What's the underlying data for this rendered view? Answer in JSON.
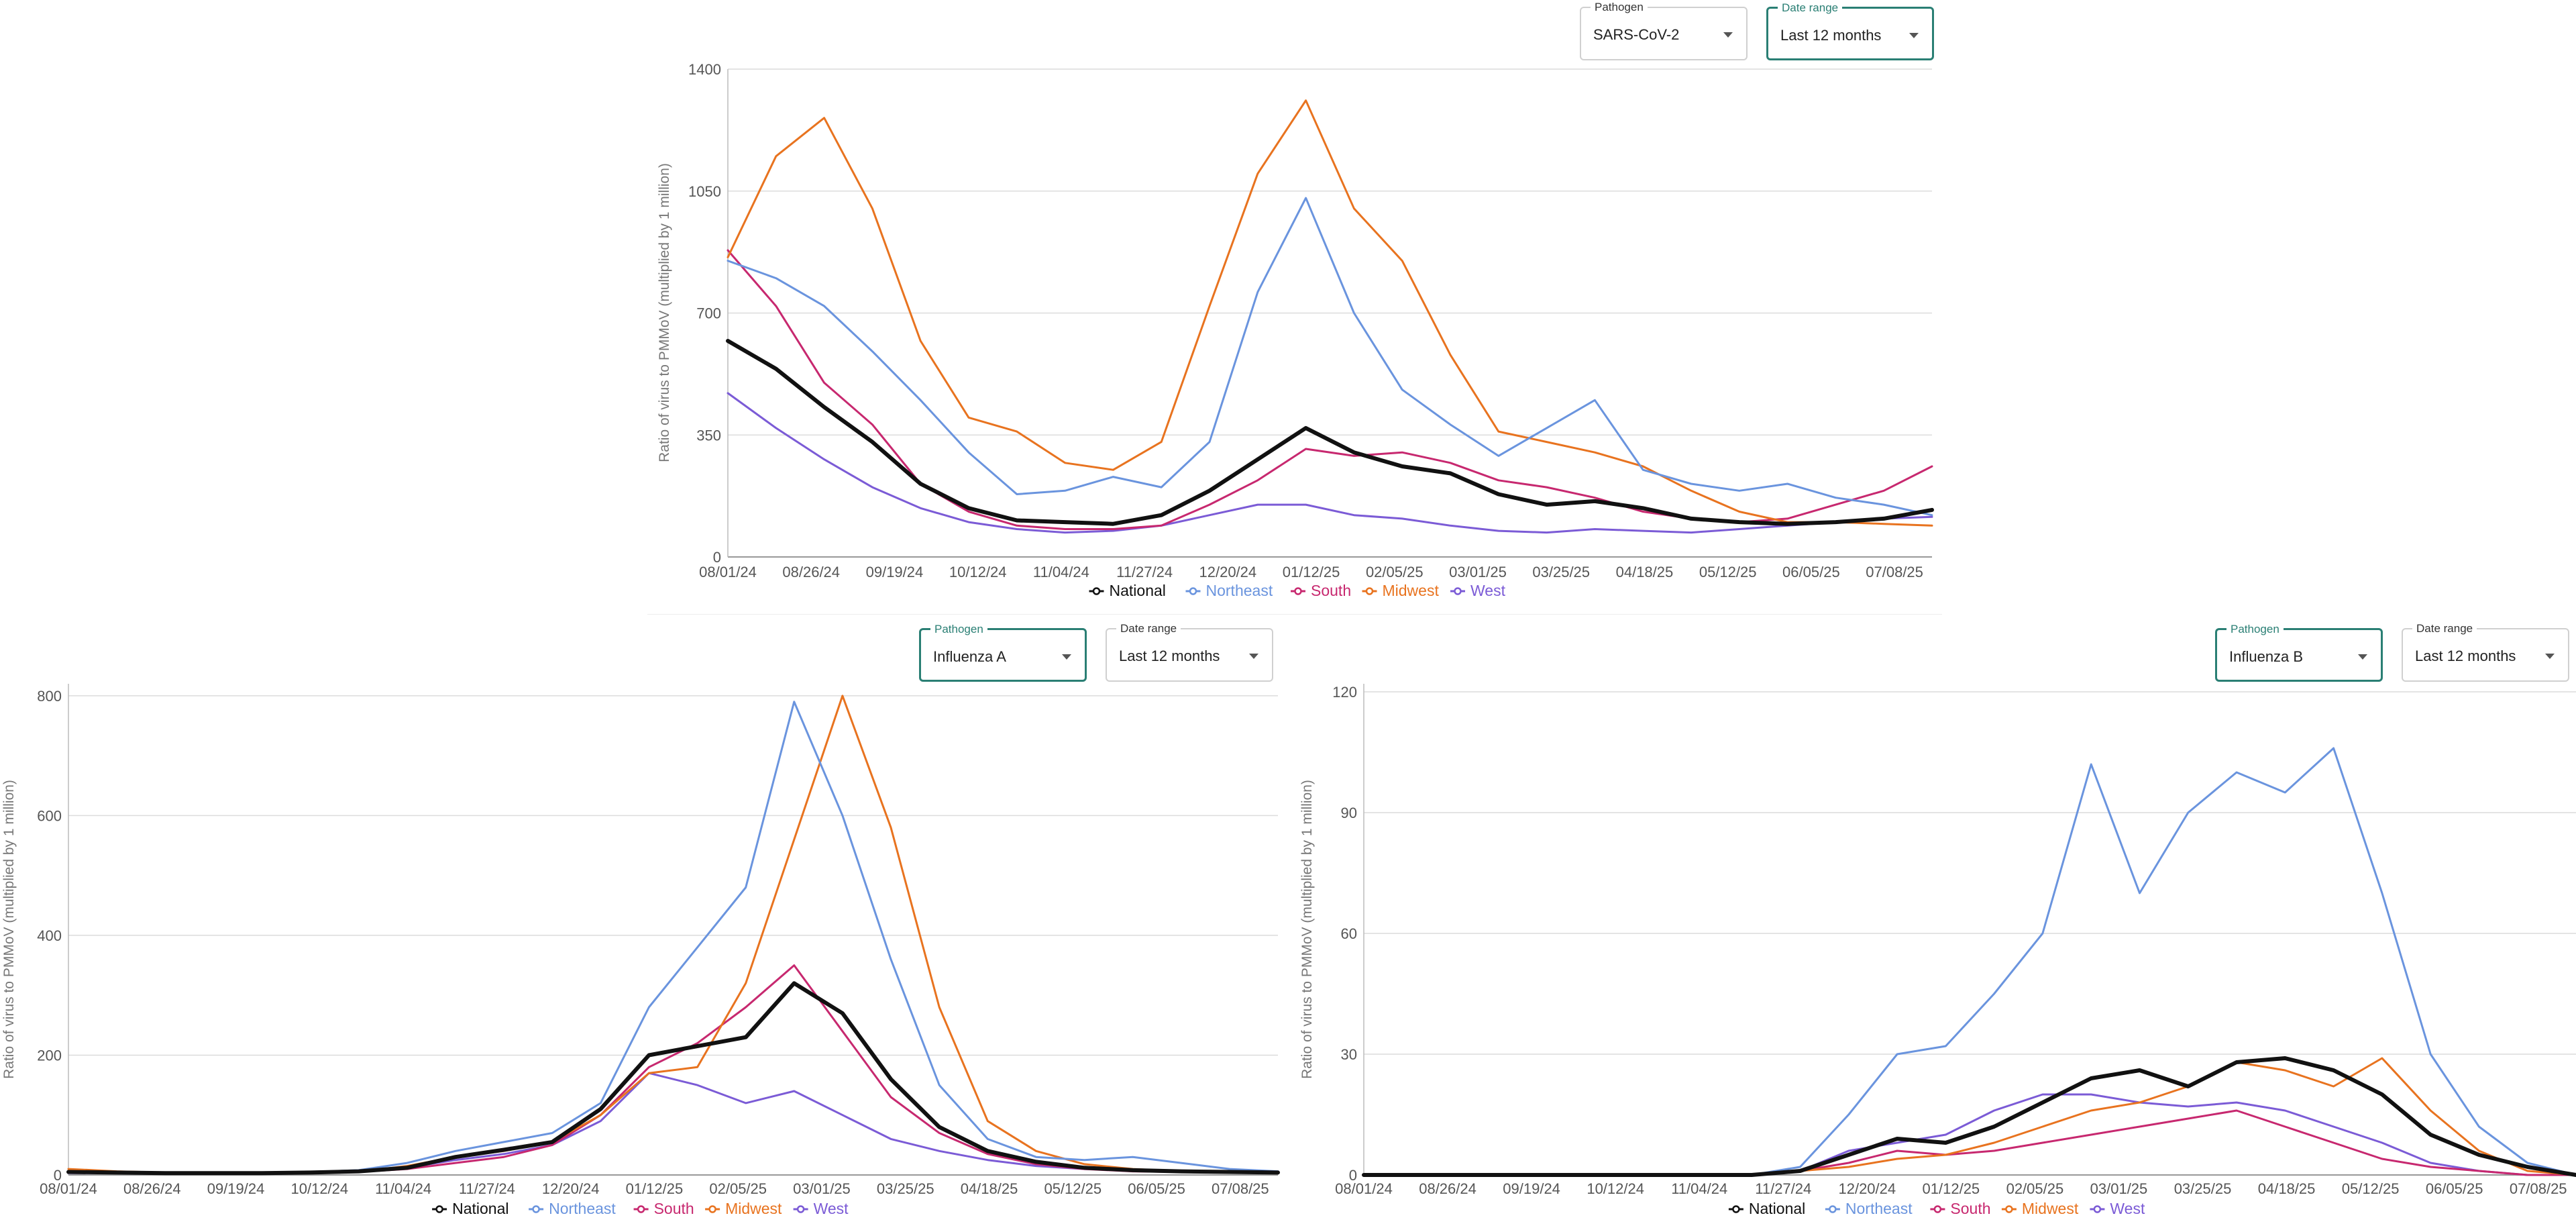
{
  "colors": {
    "National": "#111111",
    "Northeast": "#6a94de",
    "South": "#c7286f",
    "Midwest": "#e8731f",
    "West": "#7b5bd6",
    "accent": "#2a7f74"
  },
  "panels": [
    {
      "pathogen_label": "Pathogen",
      "pathogen_value": "SARS-CoV-2",
      "range_label": "Date range",
      "range_value": "Last 12 months",
      "active": "range"
    },
    {
      "pathogen_label": "Pathogen",
      "pathogen_value": "Influenza A",
      "range_label": "Date range",
      "range_value": "Last 12 months",
      "active": "pathogen"
    },
    {
      "pathogen_label": "Pathogen",
      "pathogen_value": "Influenza B",
      "range_label": "Date range",
      "range_value": "Last 12 months",
      "active": "pathogen"
    }
  ],
  "chart_data": [
    {
      "type": "line",
      "title": "SARS-CoV-2",
      "xlabel": "",
      "ylabel": "Ratio of virus to PMMoV (multiplied by 1 million)",
      "ylim": [
        0,
        1400
      ],
      "yticks": [
        0,
        350,
        700,
        1050,
        1400
      ],
      "x_ticks": [
        "08/01/24",
        "08/26/24",
        "09/19/24",
        "10/12/24",
        "11/04/24",
        "11/27/24",
        "12/20/24",
        "01/12/25",
        "02/05/25",
        "03/01/25",
        "03/25/25",
        "04/18/25",
        "05/12/25",
        "06/05/25",
        "07/08/25"
      ],
      "legend": "bottom",
      "series": [
        {
          "name": "National",
          "values": [
            620,
            540,
            430,
            330,
            210,
            140,
            105,
            100,
            95,
            120,
            190,
            280,
            370,
            300,
            260,
            240,
            180,
            150,
            160,
            140,
            110,
            100,
            95,
            100,
            110,
            135
          ]
        },
        {
          "name": "Northeast",
          "values": [
            850,
            800,
            720,
            590,
            450,
            300,
            180,
            190,
            230,
            200,
            330,
            760,
            1030,
            700,
            480,
            380,
            290,
            370,
            450,
            250,
            210,
            190,
            210,
            170,
            150,
            120
          ]
        },
        {
          "name": "South",
          "values": [
            880,
            720,
            500,
            380,
            210,
            130,
            90,
            80,
            80,
            90,
            150,
            220,
            310,
            290,
            300,
            270,
            220,
            200,
            170,
            130,
            110,
            100,
            110,
            150,
            190,
            260
          ]
        },
        {
          "name": "Midwest",
          "values": [
            860,
            1150,
            1260,
            1000,
            620,
            400,
            360,
            270,
            250,
            330,
            720,
            1100,
            1310,
            1000,
            850,
            580,
            360,
            330,
            300,
            260,
            190,
            130,
            100,
            100,
            95,
            90
          ]
        },
        {
          "name": "West",
          "values": [
            470,
            370,
            280,
            200,
            140,
            100,
            80,
            70,
            75,
            90,
            120,
            150,
            150,
            120,
            110,
            90,
            75,
            70,
            80,
            75,
            70,
            80,
            90,
            100,
            110,
            115
          ]
        }
      ]
    },
    {
      "type": "line",
      "title": "Influenza A",
      "xlabel": "",
      "ylabel": "Ratio of virus to PMMoV (multiplied by 1 million)",
      "ylim": [
        0,
        820
      ],
      "yticks": [
        0,
        200,
        400,
        600,
        800
      ],
      "x_ticks": [
        "08/01/24",
        "08/26/24",
        "09/19/24",
        "10/12/24",
        "11/04/24",
        "11/27/24",
        "12/20/24",
        "01/12/25",
        "02/05/25",
        "03/01/25",
        "03/25/25",
        "04/18/25",
        "05/12/25",
        "06/05/25",
        "07/08/25"
      ],
      "legend": "bottom",
      "series": [
        {
          "name": "National",
          "values": [
            5,
            4,
            3,
            3,
            3,
            4,
            6,
            12,
            30,
            42,
            55,
            110,
            200,
            215,
            230,
            320,
            270,
            160,
            80,
            40,
            22,
            12,
            8,
            6,
            5,
            4
          ]
        },
        {
          "name": "Northeast",
          "values": [
            5,
            5,
            4,
            3,
            4,
            5,
            8,
            20,
            40,
            55,
            70,
            120,
            280,
            380,
            480,
            790,
            600,
            360,
            150,
            60,
            30,
            25,
            30,
            20,
            10,
            6
          ]
        },
        {
          "name": "South",
          "values": [
            4,
            3,
            3,
            3,
            3,
            4,
            5,
            10,
            20,
            30,
            50,
            100,
            180,
            220,
            280,
            350,
            240,
            130,
            70,
            35,
            18,
            10,
            6,
            5,
            4,
            4
          ]
        },
        {
          "name": "Midwest",
          "values": [
            10,
            6,
            4,
            3,
            3,
            3,
            5,
            15,
            30,
            40,
            55,
            100,
            170,
            180,
            320,
            560,
            800,
            580,
            280,
            90,
            40,
            18,
            10,
            6,
            5,
            4
          ]
        },
        {
          "name": "West",
          "values": [
            3,
            3,
            3,
            3,
            3,
            4,
            6,
            12,
            25,
            35,
            50,
            90,
            170,
            150,
            120,
            140,
            100,
            60,
            40,
            25,
            15,
            10,
            8,
            6,
            5,
            4
          ]
        }
      ]
    },
    {
      "type": "line",
      "title": "Influenza B",
      "xlabel": "",
      "ylabel": "Ratio of virus to PMMoV (multiplied by 1 million)",
      "ylim": [
        0,
        122
      ],
      "yticks": [
        0,
        30,
        60,
        90,
        120
      ],
      "x_ticks": [
        "08/01/24",
        "08/26/24",
        "09/19/24",
        "10/12/24",
        "11/04/24",
        "11/27/24",
        "12/20/24",
        "01/12/25",
        "02/05/25",
        "03/01/25",
        "03/25/25",
        "04/18/25",
        "05/12/25",
        "06/05/25",
        "07/08/25"
      ],
      "legend": "bottom",
      "series": [
        {
          "name": "National",
          "values": [
            0,
            0,
            0,
            0,
            0,
            0,
            0,
            0,
            0,
            1,
            5,
            9,
            8,
            12,
            18,
            24,
            26,
            22,
            28,
            29,
            26,
            20,
            10,
            5,
            2,
            0
          ]
        },
        {
          "name": "Northeast",
          "values": [
            0,
            0,
            0,
            0,
            0,
            0,
            0,
            0,
            0,
            2,
            15,
            30,
            32,
            45,
            60,
            102,
            70,
            90,
            100,
            95,
            106,
            70,
            30,
            12,
            3,
            0
          ]
        },
        {
          "name": "South",
          "values": [
            0,
            0,
            0,
            0,
            0,
            0,
            0,
            0,
            0,
            1,
            3,
            6,
            5,
            6,
            8,
            10,
            12,
            14,
            16,
            12,
            8,
            4,
            2,
            1,
            0,
            0
          ]
        },
        {
          "name": "Midwest",
          "values": [
            0,
            0,
            0,
            0,
            0,
            0,
            0,
            0,
            0,
            1,
            2,
            4,
            5,
            8,
            12,
            16,
            18,
            22,
            28,
            26,
            22,
            29,
            16,
            6,
            1,
            0
          ]
        },
        {
          "name": "West",
          "values": [
            0,
            0,
            0,
            0,
            0,
            0,
            0,
            0,
            0,
            1,
            6,
            8,
            10,
            16,
            20,
            20,
            18,
            17,
            18,
            16,
            12,
            8,
            3,
            1,
            0,
            0
          ]
        }
      ]
    }
  ]
}
